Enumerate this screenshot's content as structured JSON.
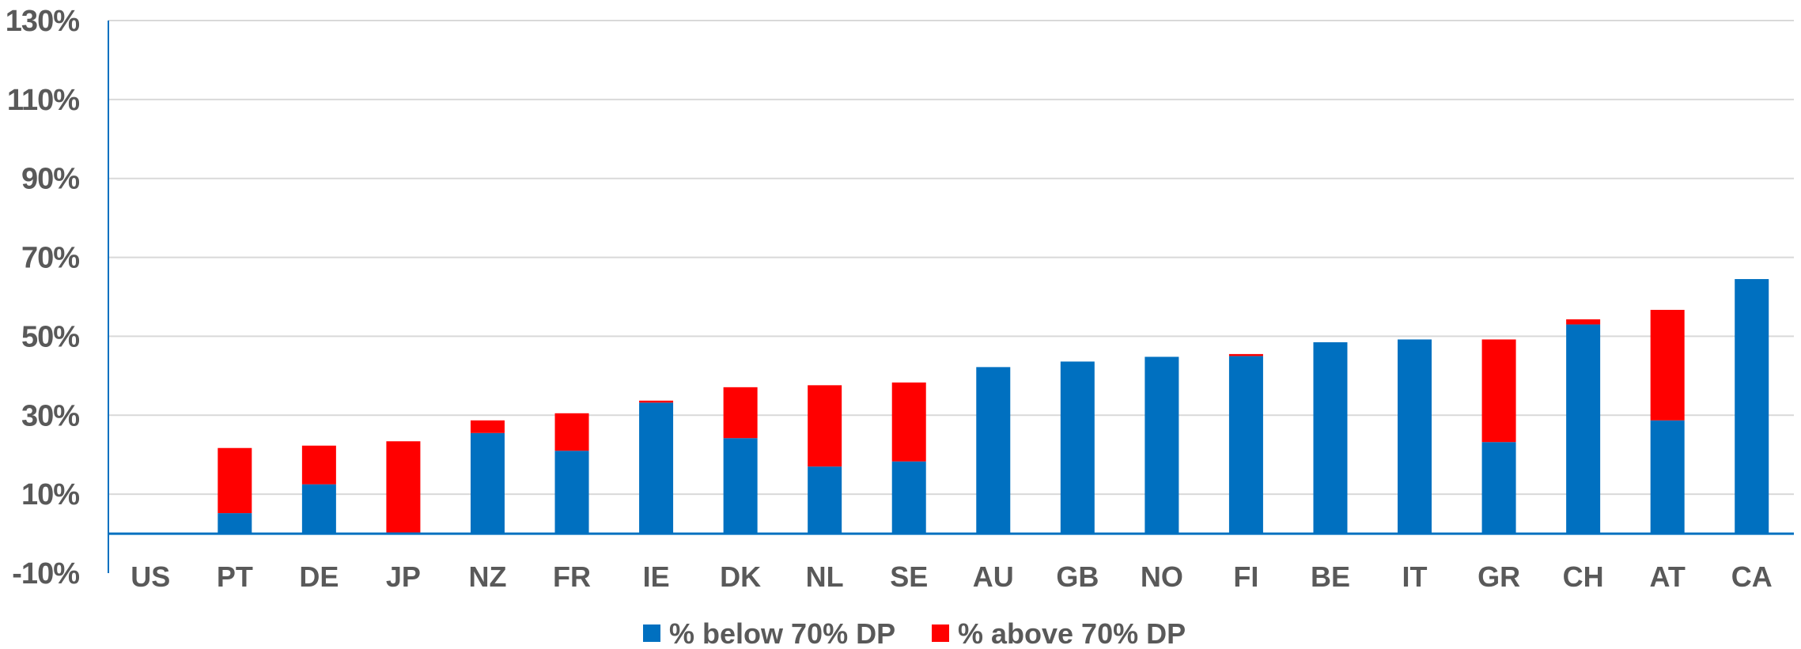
{
  "chart_data": {
    "type": "bar",
    "stacked": true,
    "title": "",
    "xlabel": "",
    "ylabel": "",
    "categories": [
      "US",
      "PT",
      "DE",
      "JP",
      "NZ",
      "FR",
      "IE",
      "DK",
      "NL",
      "SE",
      "AU",
      "GB",
      "NO",
      "FI",
      "BE",
      "IT",
      "GR",
      "CH",
      "AT",
      "CA"
    ],
    "series": [
      {
        "name": "% below 70% DP",
        "color": "#0070C0",
        "values": [
          0,
          5.2,
          12.5,
          0.3,
          25.5,
          21,
          33.2,
          24.2,
          17,
          18.3,
          42.2,
          43.6,
          44.8,
          45,
          48.5,
          49.2,
          23.2,
          53,
          28.7,
          64.5
        ]
      },
      {
        "name": "% above 70% DP",
        "color": "#FF0000",
        "values": [
          0,
          16.5,
          9.8,
          23.1,
          3.2,
          9.5,
          0.5,
          12.9,
          20.6,
          20,
          0,
          0,
          0,
          0.5,
          0,
          0,
          26,
          1.3,
          28,
          0
        ]
      }
    ],
    "ylim": [
      -10,
      130
    ],
    "yticks": [
      -10,
      10,
      30,
      50,
      70,
      90,
      110,
      130
    ],
    "ytick_labels": [
      "-10%",
      "10%",
      "30%",
      "50%",
      "70%",
      "90%",
      "110%",
      "130%"
    ],
    "grid": true,
    "legend_position": "bottom"
  }
}
